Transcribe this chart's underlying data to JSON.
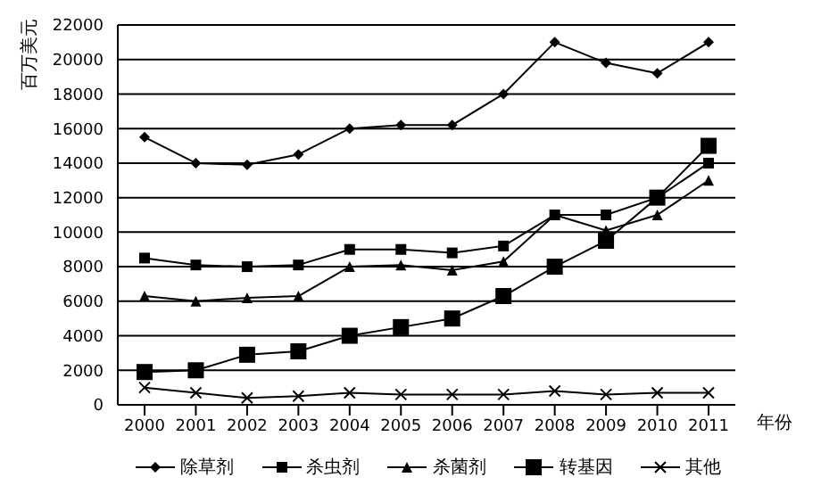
{
  "chart_data": {
    "type": "line",
    "ylabel": "百万美元",
    "xlabel": "年份",
    "categories": [
      "2000",
      "2001",
      "2002",
      "2003",
      "2004",
      "2005",
      "2006",
      "2007",
      "2008",
      "2009",
      "2010",
      "2011"
    ],
    "series": [
      {
        "name": "除草剂",
        "color": "#000000",
        "marker": "diamond",
        "values": [
          15500,
          14000,
          13900,
          14500,
          16000,
          16200,
          16200,
          18000,
          21000,
          19800,
          19200,
          21000
        ]
      },
      {
        "name": "杀虫剂",
        "color": "#000000",
        "marker": "square",
        "values": [
          8500,
          8100,
          8000,
          8100,
          9000,
          9000,
          8800,
          9200,
          11000,
          11000,
          12000,
          14000
        ]
      },
      {
        "name": "杀菌剂",
        "color": "#000000",
        "marker": "triangle",
        "values": [
          6300,
          6000,
          6200,
          6300,
          8000,
          8100,
          7800,
          8300,
          11000,
          10100,
          11000,
          13000
        ]
      },
      {
        "name": "转基因",
        "color": "#000000",
        "marker": "square",
        "values": [
          1900,
          2000,
          2900,
          3100,
          4000,
          4500,
          5000,
          6300,
          8000,
          9500,
          12000,
          15000
        ]
      },
      {
        "name": "其他",
        "color": "#000000",
        "marker": "cross",
        "values": [
          1000,
          700,
          400,
          500,
          700,
          600,
          600,
          600,
          800,
          600,
          700,
          700
        ]
      }
    ],
    "ylim": [
      0,
      22000
    ],
    "yticks": [
      0,
      2000,
      4000,
      6000,
      8000,
      10000,
      12000,
      14000,
      16000,
      18000,
      20000,
      22000
    ],
    "grid": "y",
    "legend": "bottom"
  }
}
